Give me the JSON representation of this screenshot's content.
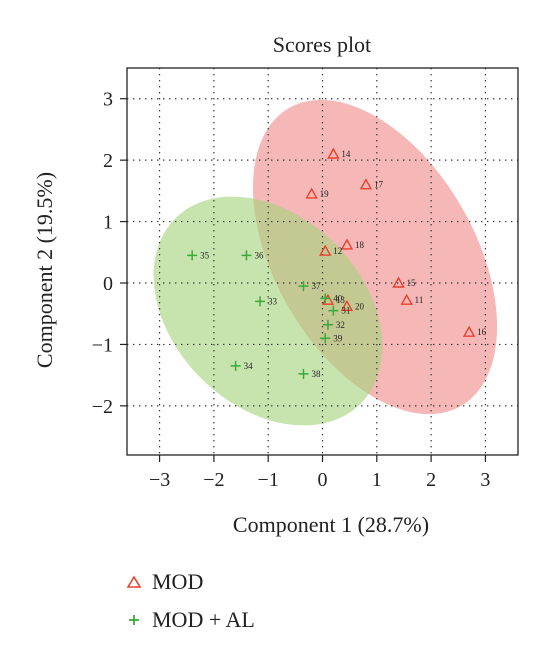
{
  "chart_data": {
    "type": "scatter",
    "title": "Scores plot",
    "xlabel": "Component 1 (28.7%)",
    "ylabel": "Component 2 (19.5%)",
    "xlim": [
      -3.6,
      3.6
    ],
    "ylim": [
      -2.8,
      3.5
    ],
    "xticks": [
      -3,
      -2,
      -1,
      0,
      1,
      2,
      3
    ],
    "yticks": [
      -2,
      -1,
      0,
      1,
      2,
      3
    ],
    "grid": true,
    "legend_position": "bottom",
    "series": [
      {
        "name": "MOD",
        "marker": "triangle",
        "color": "#e8412c",
        "ellipse_color": "#f08a8a",
        "points": [
          {
            "label": "14",
            "x": 0.2,
            "y": 2.1
          },
          {
            "label": "17",
            "x": 0.8,
            "y": 1.6
          },
          {
            "label": "19",
            "x": -0.2,
            "y": 1.45
          },
          {
            "label": "18",
            "x": 0.45,
            "y": 0.62
          },
          {
            "label": "12",
            "x": 0.05,
            "y": 0.52
          },
          {
            "label": "15",
            "x": 1.4,
            "y": 0.0
          },
          {
            "label": "11",
            "x": 1.55,
            "y": -0.28
          },
          {
            "label": "16",
            "x": 2.7,
            "y": -0.8
          },
          {
            "label": "20",
            "x": 0.45,
            "y": -0.38
          },
          {
            "label": "13",
            "x": 0.1,
            "y": -0.28
          }
        ]
      },
      {
        "name": "MOD + AL",
        "marker": "plus",
        "color": "#3aa83a",
        "ellipse_color": "#a5d37d",
        "points": [
          {
            "label": "35",
            "x": -2.4,
            "y": 0.45
          },
          {
            "label": "36",
            "x": -1.4,
            "y": 0.45
          },
          {
            "label": "33",
            "x": -1.15,
            "y": -0.3
          },
          {
            "label": "37",
            "x": -0.35,
            "y": -0.05
          },
          {
            "label": "40",
            "x": 0.05,
            "y": -0.25
          },
          {
            "label": "31",
            "x": 0.2,
            "y": -0.45
          },
          {
            "label": "32",
            "x": 0.1,
            "y": -0.68
          },
          {
            "label": "39",
            "x": 0.05,
            "y": -0.9
          },
          {
            "label": "34",
            "x": -1.6,
            "y": -1.35
          },
          {
            "label": "38",
            "x": -0.35,
            "y": -1.48
          }
        ]
      }
    ]
  }
}
